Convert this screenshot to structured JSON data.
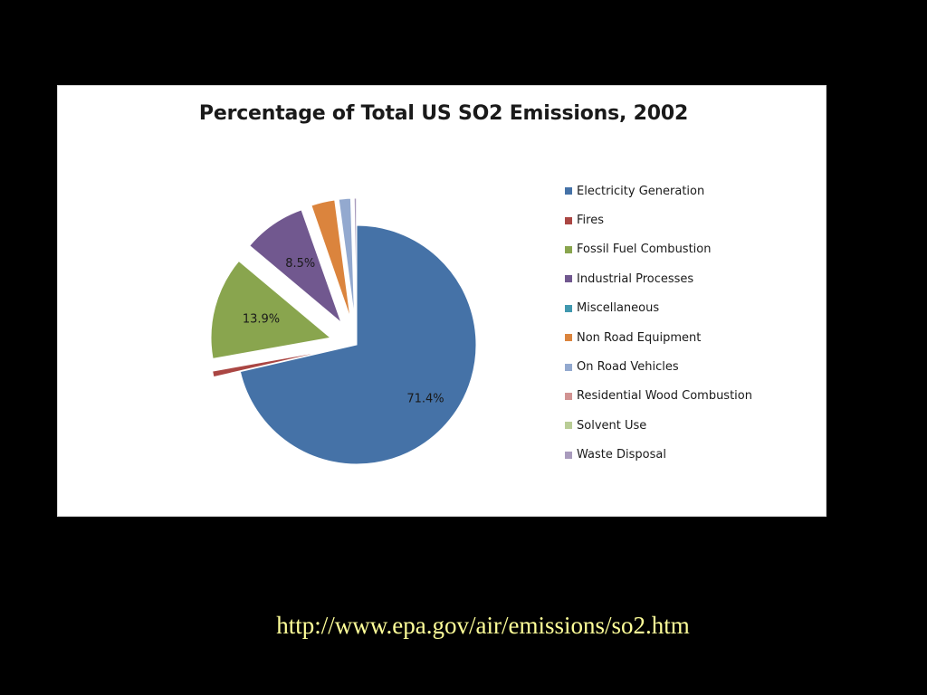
{
  "colors": {
    "background": "#000000",
    "panel": "#ffffff",
    "link": "#ffff99"
  },
  "chart_data": {
    "type": "pie",
    "title": "Percentage of Total US SO2 Emissions, 2002",
    "legend_position": "right",
    "exploded": true,
    "slices": [
      {
        "name": "Electricity Generation",
        "value": 71.4,
        "color": "#4572a7",
        "label": "71.4%"
      },
      {
        "name": "Fires",
        "value": 0.8,
        "color": "#aa4643",
        "label": ""
      },
      {
        "name": "Fossil Fuel Combustion",
        "value": 13.9,
        "color": "#89a54e",
        "label": "13.9%"
      },
      {
        "name": "Industrial Processes",
        "value": 8.5,
        "color": "#71588f",
        "label": "8.5%"
      },
      {
        "name": "Miscellaneous",
        "value": 0.1,
        "color": "#4198af",
        "label": ""
      },
      {
        "name": "Non Road Equipment",
        "value": 3.2,
        "color": "#db843d",
        "label": ""
      },
      {
        "name": "On Road Vehicles",
        "value": 1.6,
        "color": "#93a9cf",
        "label": ""
      },
      {
        "name": "Residential Wood Combustion",
        "value": 0.1,
        "color": "#d19392",
        "label": ""
      },
      {
        "name": "Solvent Use",
        "value": 0.1,
        "color": "#b9cd96",
        "label": ""
      },
      {
        "name": "Waste Disposal",
        "value": 0.3,
        "color": "#a99bbd",
        "label": ""
      }
    ]
  },
  "source": {
    "url_text": "http://www.epa.gov/air/emissions/so2.htm"
  }
}
